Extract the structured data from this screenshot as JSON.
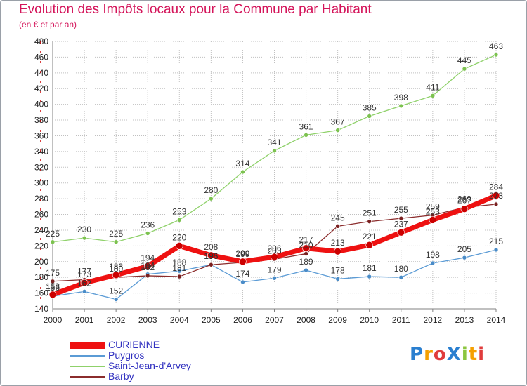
{
  "title": "Evolution des Impôts locaux pour la Commune par Habitant",
  "subtitle": "(en € et par an)",
  "logo": {
    "text": "ProXiti",
    "letters": [
      {
        "ch": "P",
        "color": "#2a7fd0"
      },
      {
        "ch": "r",
        "color": "#f5a000"
      },
      {
        "ch": "o",
        "color": "#e03c3c"
      },
      {
        "ch": "X",
        "color": "#2a7fd0"
      },
      {
        "ch": "i",
        "color": "#8cc63f"
      },
      {
        "ch": "t",
        "color": "#f5a000"
      },
      {
        "ch": "i",
        "color": "#e03c3c"
      }
    ]
  },
  "colors": {
    "grid": "#c0c0c0",
    "axis": "#808080",
    "tick_label": "#222222",
    "data_label": "#333333",
    "left_tick_marks": "#cc0000"
  },
  "chart_data": {
    "type": "line",
    "x": [
      2000,
      2001,
      2002,
      2003,
      2004,
      2005,
      2006,
      2007,
      2008,
      2009,
      2010,
      2011,
      2012,
      2013,
      2014
    ],
    "ylim": [
      140,
      480
    ],
    "y_ticks": [
      140,
      160,
      180,
      200,
      220,
      240,
      260,
      280,
      300,
      320,
      340,
      360,
      380,
      400,
      420,
      440,
      460,
      480
    ],
    "grid": true,
    "legend_position": "bottom-left",
    "series": [
      {
        "name": "CURIENNE",
        "color": "#ee1111",
        "marker_color": "#cc0000",
        "width": 7,
        "values": [
          158,
          173,
          183,
          194,
          220,
          208,
          200,
          206,
          217,
          213,
          221,
          237,
          253,
          267,
          284
        ]
      },
      {
        "name": "Puygros",
        "color": "#5b9bd5",
        "marker_color": "#4a8cc8",
        "width": 1.3,
        "values": [
          156,
          162,
          152,
          184,
          188,
          196,
          174,
          179,
          189,
          178,
          181,
          180,
          198,
          205,
          215
        ]
      },
      {
        "name": "Saint-Jean-d'Arvey",
        "color": "#8fd16a",
        "marker_color": "#7cc24f",
        "width": 1.3,
        "values": [
          225,
          230,
          225,
          236,
          253,
          280,
          314,
          341,
          361,
          367,
          385,
          398,
          411,
          445,
          463
        ]
      },
      {
        "name": "Barby",
        "color": "#8b2c2c",
        "marker_color": "#7a2020",
        "width": 1.3,
        "values": [
          175,
          177,
          180,
          182,
          181,
          196,
          199,
          203,
          210,
          245,
          251,
          255,
          259,
          269,
          273
        ]
      }
    ]
  }
}
